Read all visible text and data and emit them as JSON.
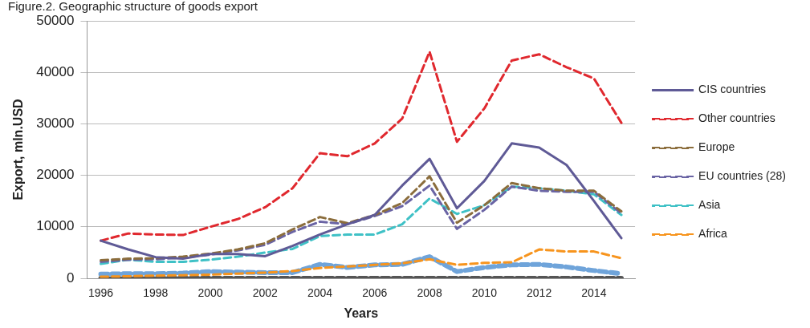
{
  "chart_data": {
    "type": "line",
    "title": "Figure.2. Geographic structure of goods export",
    "xlabel": "Years",
    "ylabel": "Export, mln.USD",
    "categories": [
      "1996",
      null,
      "1998",
      null,
      "2000",
      null,
      "2002",
      null,
      "2004",
      null,
      "2006",
      null,
      "2008",
      null,
      "2010",
      null,
      "2012",
      null,
      "2014",
      null
    ],
    "ylim": [
      0,
      50000
    ],
    "yticks": [
      0,
      10000,
      20000,
      30000,
      40000,
      50000
    ],
    "grid": "y",
    "legend": "right",
    "marker": "none",
    "series": [
      {
        "name": "CIS countries",
        "color": "#5f5a96",
        "line_style": "solid",
        "values": [
          7300,
          5600,
          4100,
          3800,
          4700,
          4700,
          4300,
          6300,
          8500,
          10500,
          12300,
          18000,
          23200,
          13600,
          18900,
          26200,
          25400,
          22000,
          15000,
          7800
        ]
      },
      {
        "name": "Other countries",
        "color": "#e0282e",
        "line_style": "dashed",
        "values": [
          7300,
          8700,
          8500,
          8400,
          10000,
          11500,
          13800,
          17500,
          24300,
          23700,
          26200,
          31000,
          44000,
          26500,
          33000,
          42300,
          43500,
          41000,
          38800,
          30200
        ]
      },
      {
        "name": "Europe",
        "color": "#8b6d3c",
        "line_style": "dashed",
        "values": [
          3500,
          3800,
          3900,
          4200,
          4800,
          5600,
          6800,
          9500,
          11900,
          10700,
          12300,
          14600,
          19800,
          10800,
          14200,
          18500,
          17500,
          17000,
          17000,
          13000
        ]
      },
      {
        "name": "EU countries (28)",
        "color": "#6a64a4",
        "line_style": "dashed",
        "values": [
          3200,
          3600,
          3700,
          4000,
          4600,
          5400,
          6500,
          9000,
          11000,
          10500,
          12100,
          14000,
          18000,
          9600,
          13300,
          17800,
          17000,
          16800,
          16800,
          12600
        ]
      },
      {
        "name": "Asia",
        "color": "#3fc1c6",
        "line_style": "dashed",
        "values": [
          2800,
          3600,
          3200,
          3200,
          3600,
          4200,
          5000,
          5700,
          8200,
          8500,
          8500,
          10500,
          15500,
          12500,
          14200,
          17800,
          17500,
          17000,
          16300,
          12300
        ]
      },
      {
        "name": "Africa",
        "color": "#f7941d",
        "line_style": "dashed",
        "values": [
          300,
          400,
          500,
          600,
          700,
          900,
          1100,
          1400,
          2000,
          2300,
          2600,
          2900,
          3700,
          2600,
          3000,
          3100,
          5600,
          5200,
          5200,
          3900
        ]
      },
      {
        "color": "#6fa4da",
        "line_style": "dashed",
        "values": [
          800,
          900,
          900,
          1000,
          1300,
          1200,
          1100,
          1100,
          2700,
          2100,
          2600,
          2700,
          4200,
          1300,
          2100,
          2600,
          2700,
          2200,
          1500,
          900
        ]
      },
      {
        "color": "#555555",
        "line_style": "dashed",
        "values": [
          0,
          0,
          0,
          0,
          0,
          0,
          0,
          0,
          0,
          0,
          0,
          0,
          0,
          0,
          0,
          0,
          0,
          0,
          0,
          0
        ]
      }
    ]
  }
}
